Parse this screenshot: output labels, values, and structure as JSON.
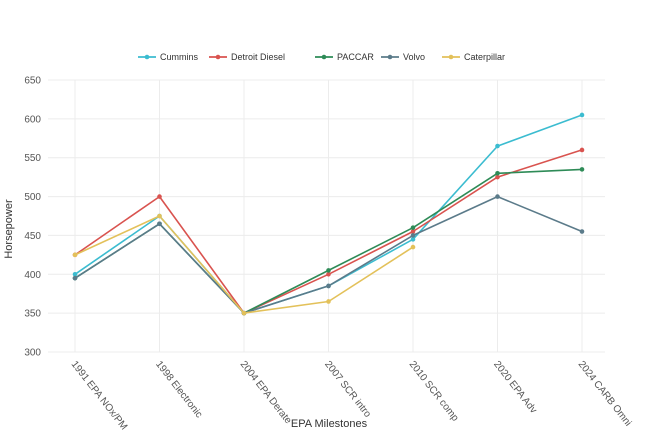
{
  "chart_data": {
    "type": "line",
    "title": "",
    "xlabel": "EPA Milestones",
    "ylabel": "Horsepower",
    "ylim": [
      300,
      650
    ],
    "yticks": [
      300,
      350,
      400,
      450,
      500,
      550,
      600,
      650
    ],
    "grid": true,
    "legend_position": "top-center",
    "categories": [
      "1991 EPA NOx/PM",
      "1998 Electronic",
      "2004 EPA Derate",
      "2007 SCR intro",
      "2010 SCR comp",
      "2020 EPA Adv",
      "2024 CARB Omni"
    ],
    "series": [
      {
        "name": "Cummins",
        "color": "#3bbcd0",
        "values": [
          400,
          475,
          350,
          385,
          445,
          565,
          605
        ]
      },
      {
        "name": "Detroit Diesel",
        "color": "#d9534f",
        "values": [
          425,
          500,
          350,
          400,
          455,
          525,
          560
        ]
      },
      {
        "name": "PACCAR",
        "color": "#2e8b57",
        "values": [
          395,
          465,
          350,
          405,
          460,
          530,
          535
        ]
      },
      {
        "name": "Volvo",
        "color": "#5b7b8a",
        "values": [
          395,
          465,
          350,
          385,
          450,
          500,
          455
        ]
      },
      {
        "name": "Caterpillar",
        "color": "#e3c15a",
        "values": [
          425,
          475,
          350,
          365,
          435,
          null,
          null
        ]
      }
    ]
  }
}
